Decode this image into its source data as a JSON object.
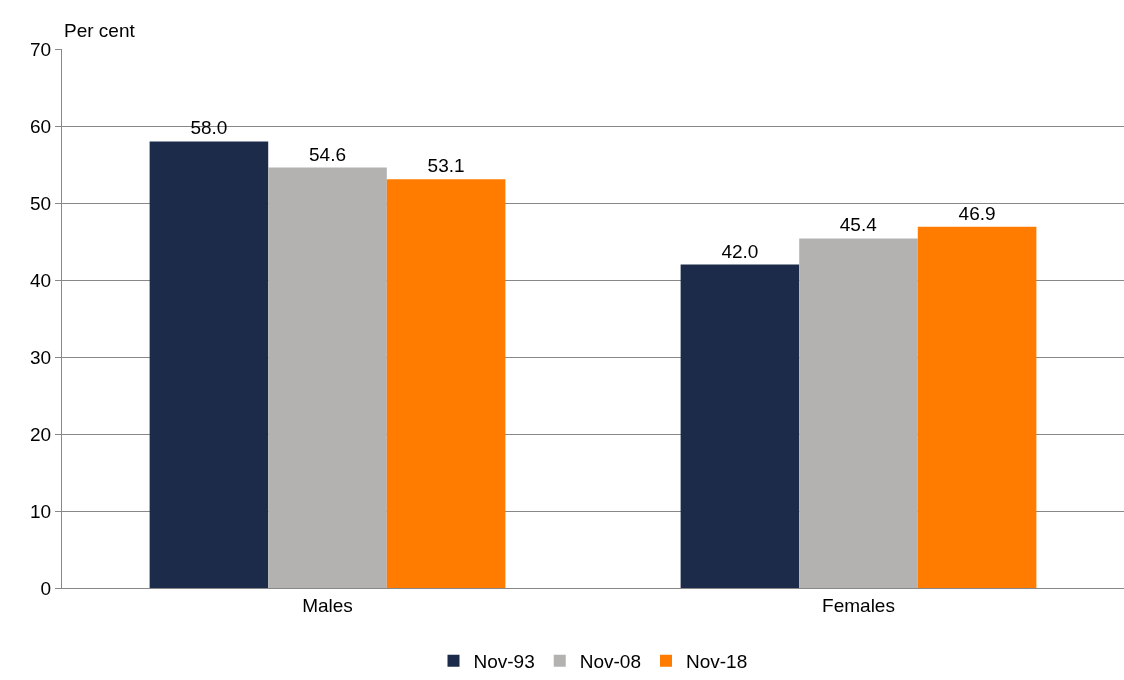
{
  "chart_data": {
    "type": "bar",
    "ylabel": "Per cent",
    "categories": [
      "Males",
      "Females"
    ],
    "series": [
      {
        "name": "Nov-93",
        "color": "#1c2b4a",
        "values": [
          58.0,
          42.0
        ],
        "value_labels": [
          "58.0",
          "42.0"
        ]
      },
      {
        "name": "Nov-08",
        "color": "#b3b2b1",
        "values": [
          54.6,
          45.4
        ],
        "value_labels": [
          "54.6",
          "45.4"
        ]
      },
      {
        "name": "Nov-18",
        "color": "#ff7c00",
        "values": [
          53.1,
          46.9
        ],
        "value_labels": [
          "53.1",
          "46.9"
        ]
      }
    ],
    "ylim": [
      0,
      70
    ],
    "yticks": [
      0,
      10,
      20,
      30,
      40,
      50,
      60,
      70
    ],
    "grid": "y",
    "legend": "bottom"
  }
}
